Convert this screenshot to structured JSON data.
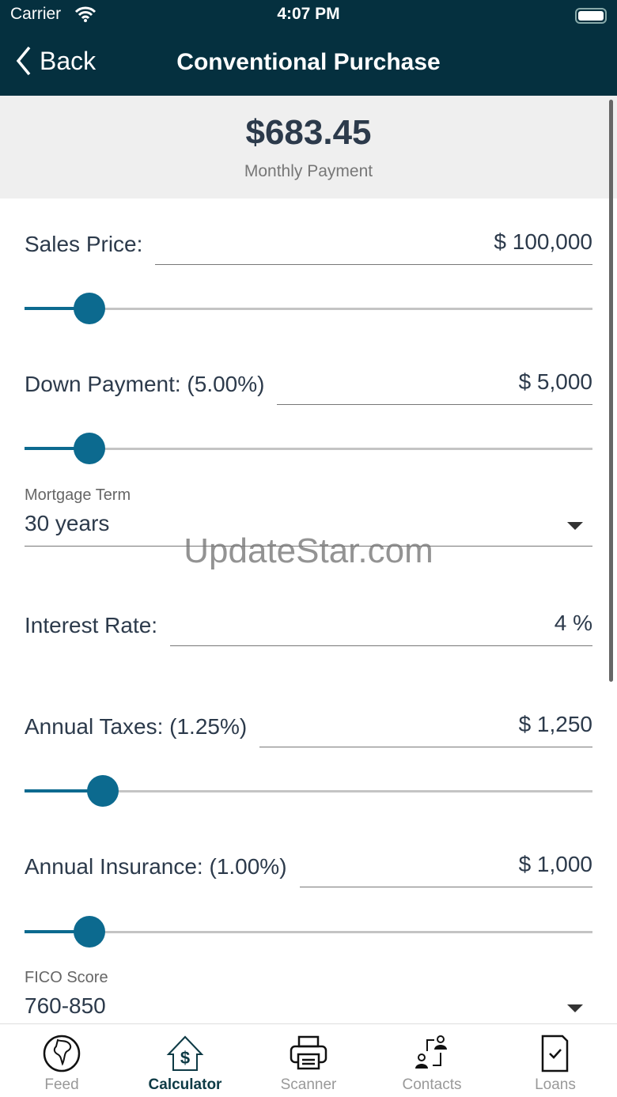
{
  "status": {
    "carrier": "Carrier",
    "time": "4:07 PM"
  },
  "nav": {
    "back": "Back",
    "title": "Conventional Purchase"
  },
  "summary": {
    "amount": "$683.45",
    "label": "Monthly Payment"
  },
  "fields": {
    "sales_price": {
      "label": "Sales Price:",
      "value": "$ 100,000",
      "slider": 0.114
    },
    "down_payment": {
      "label": "Down Payment: (5.00%)",
      "value": "$ 5,000",
      "slider": 0.114
    },
    "mortgage_term": {
      "caption": "Mortgage Term",
      "value": "30 years"
    },
    "interest_rate": {
      "label": "Interest Rate:",
      "value": "4 %"
    },
    "annual_taxes": {
      "label": "Annual Taxes: (1.25%)",
      "value": "$ 1,250",
      "slider": 0.138
    },
    "annual_insurance": {
      "label": "Annual Insurance: (1.00%)",
      "value": "$ 1,000",
      "slider": 0.114
    },
    "fico": {
      "caption": "FICO Score",
      "value": "760-850"
    }
  },
  "watermark": "UpdateStar.com",
  "tabs": [
    {
      "label": "Feed",
      "icon": "globe-icon"
    },
    {
      "label": "Calculator",
      "icon": "house-dollar-icon",
      "active": true
    },
    {
      "label": "Scanner",
      "icon": "printer-icon"
    },
    {
      "label": "Contacts",
      "icon": "contacts-icon"
    },
    {
      "label": "Loans",
      "icon": "document-check-icon"
    }
  ],
  "colors": {
    "header": "#05303f",
    "accent": "#0c6a8f",
    "active_tab": "#0d3a45"
  }
}
